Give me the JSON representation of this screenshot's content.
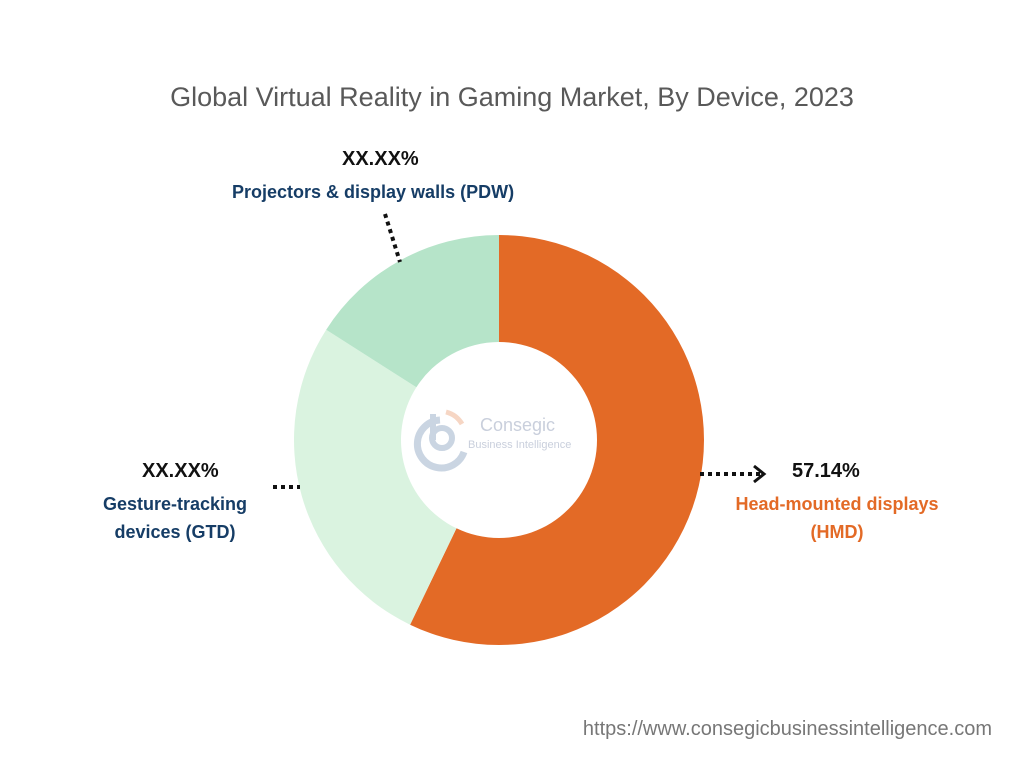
{
  "chart_data": {
    "type": "pie",
    "title": "Global Virtual Reality in Gaming Market, By Device, 2023",
    "categories": [
      "Head-mounted displays (HMD)",
      "Gesture-tracking devices (GTD)",
      "Projectors & display walls (PDW)"
    ],
    "values": [
      57.14,
      26.9,
      15.96
    ],
    "data_labels": [
      "57.14%",
      "XX.XX%",
      "XX.XX%"
    ],
    "colors": [
      "#E36A26",
      "#DAF3E0",
      "#B6E4C9"
    ],
    "label_colors": [
      "#E36A26",
      "#163D66",
      "#163D66"
    ],
    "donut": true
  },
  "labels": {
    "hmd_line1": "Head-mounted displays",
    "hmd_line2": "(HMD)",
    "gtd_line1": "Gesture-tracking",
    "gtd_line2": "devices (GTD)",
    "pdw": "Projectors & display walls (PDW)"
  },
  "logo": {
    "name": "Consegic",
    "sub": "Business Intelligence"
  },
  "footer": {
    "url": "https://www.consegicbusinessintelligence.com"
  }
}
